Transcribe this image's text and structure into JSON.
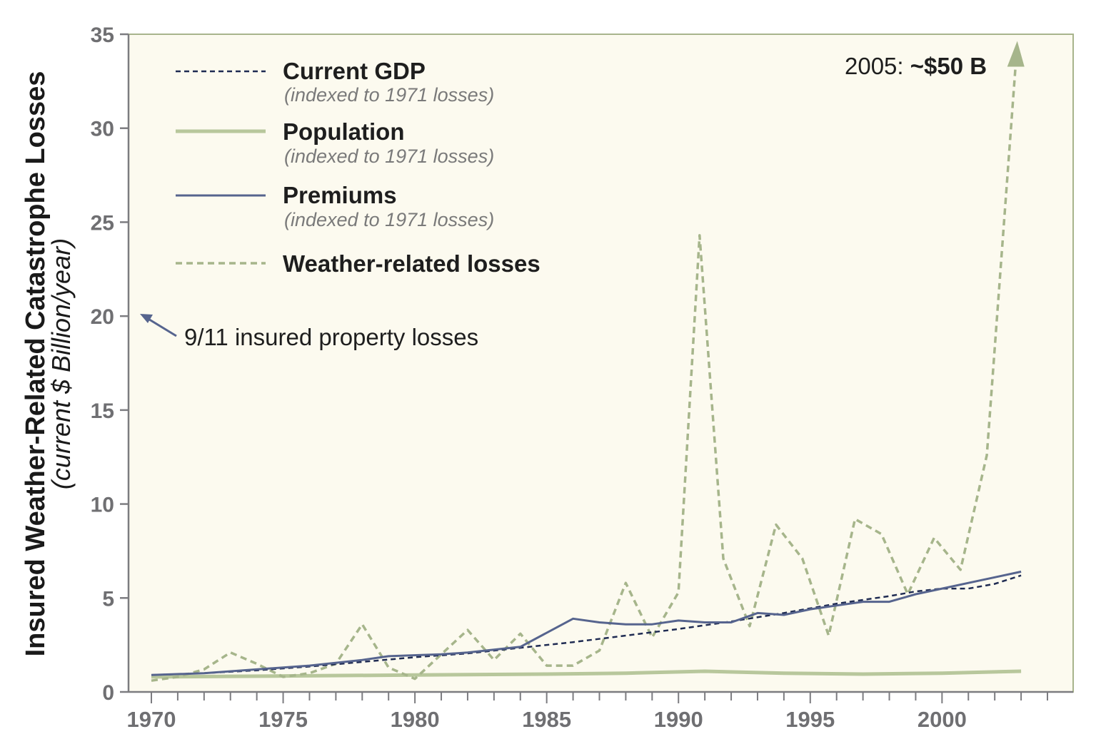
{
  "chart_data": {
    "type": "line",
    "xlabel": "",
    "ylabel": "Insured Weather-Related Catastrophe Losses",
    "ylabel_units": "(current $ Billion/year)",
    "xlim": [
      1969.5,
      2004.5
    ],
    "ylim": [
      0,
      35
    ],
    "x_ticks": [
      1970,
      1975,
      1980,
      1985,
      1990,
      1995,
      2000
    ],
    "y_ticks": [
      0,
      5,
      10,
      15,
      20,
      25,
      30,
      35
    ],
    "legend": [
      {
        "label": "Current GDP",
        "sub": "(indexed to 1971 losses)",
        "style": "dashed",
        "color": "#1f2b52"
      },
      {
        "label": "Population",
        "sub": "(indexed to 1971 losses)",
        "style": "solid-thick",
        "color": "#b8c79c"
      },
      {
        "label": "Premiums",
        "sub": "(indexed to 1971 losses)",
        "style": "solid",
        "color": "#56648e"
      },
      {
        "label": "Weather-related losses",
        "sub": "",
        "style": "dashed-thick",
        "color": "#a6b58b"
      }
    ],
    "series": [
      {
        "name": "Current GDP",
        "x": [
          1970,
          1972,
          1974,
          1976,
          1978,
          1980,
          1982,
          1984,
          1986,
          1988,
          1990,
          1992,
          1994,
          1996,
          1998,
          1999,
          2000,
          2001,
          2002,
          2003
        ],
        "values": [
          0.9,
          1.0,
          1.15,
          1.35,
          1.6,
          1.85,
          2.05,
          2.35,
          2.65,
          3.0,
          3.35,
          3.75,
          4.2,
          4.7,
          5.1,
          5.35,
          5.5,
          5.5,
          5.75,
          6.2
        ]
      },
      {
        "name": "Population",
        "x": [
          1970,
          1975,
          1980,
          1985,
          1988,
          1991,
          1994,
          1997,
          2000,
          2003
        ],
        "values": [
          0.8,
          0.85,
          0.9,
          0.95,
          1.0,
          1.1,
          1.0,
          0.95,
          1.0,
          1.1
        ]
      },
      {
        "name": "Premiums",
        "x": [
          1970,
          1972,
          1974,
          1976,
          1978,
          1979,
          1981,
          1982,
          1984,
          1986,
          1987,
          1988,
          1989,
          1990,
          1991,
          1992,
          1993,
          1994,
          1995,
          1996,
          1997,
          1998,
          1999,
          2000,
          2001,
          2002,
          2003
        ],
        "values": [
          0.9,
          1.0,
          1.2,
          1.4,
          1.7,
          1.9,
          2.0,
          2.1,
          2.4,
          3.9,
          3.7,
          3.6,
          3.6,
          3.8,
          3.7,
          3.7,
          4.2,
          4.1,
          4.4,
          4.6,
          4.8,
          4.8,
          5.2,
          5.5,
          5.8,
          6.1,
          6.4
        ]
      },
      {
        "name": "Weather-related losses",
        "x": [
          1970,
          1971,
          1972,
          1973,
          1974,
          1975,
          1976,
          1977,
          1978,
          1979,
          1980,
          1981,
          1982,
          1983,
          1984,
          1985,
          1986,
          1987,
          1988,
          1989,
          1990,
          1990.8,
          1991.7,
          1992.7,
          1993.7,
          1994.7,
          1995.7,
          1996.7,
          1997.7,
          1998.7,
          1999.7,
          2000.7,
          2001.7,
          2002.8
        ],
        "values": [
          0.6,
          0.8,
          1.2,
          2.1,
          1.5,
          0.8,
          1.0,
          1.5,
          3.6,
          1.3,
          0.7,
          2.0,
          3.3,
          1.7,
          3.1,
          1.4,
          1.4,
          2.2,
          5.8,
          2.9,
          5.3,
          24.3,
          7.1,
          3.5,
          8.9,
          7.1,
          3.0,
          9.2,
          8.4,
          5.2,
          8.2,
          6.5,
          12.6,
          33.5
        ]
      }
    ],
    "annotations": [
      {
        "text": "9/11 insured property losses",
        "x": 1969.5,
        "y": 20
      },
      {
        "text_prefix": "2005: ",
        "text_bold": "~$50 B",
        "x": 2002.8,
        "y": 33.5
      }
    ]
  }
}
